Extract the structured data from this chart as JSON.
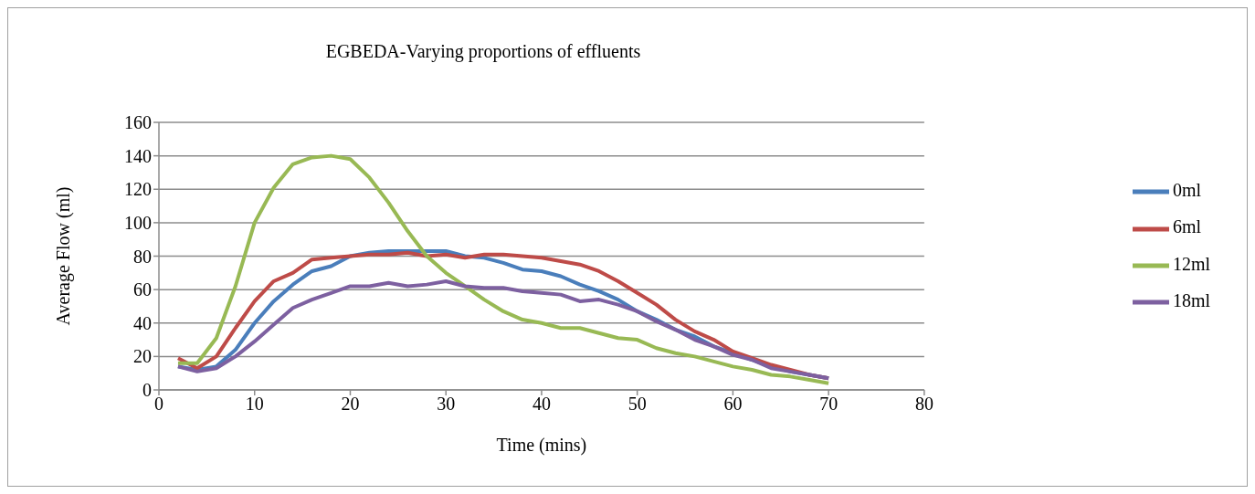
{
  "chart_data": {
    "type": "line",
    "title": "EGBEDA-Varying proportions of effluents",
    "xlabel": "Time (mins)",
    "ylabel": "Average Flow (ml)",
    "x": [
      2,
      4,
      6,
      8,
      10,
      12,
      14,
      16,
      18,
      20,
      22,
      24,
      26,
      28,
      30,
      32,
      34,
      36,
      38,
      40,
      42,
      44,
      46,
      48,
      50,
      52,
      54,
      56,
      58,
      60,
      62,
      64,
      66,
      68,
      70
    ],
    "series": [
      {
        "name": "0ml",
        "color": "#4a7ebb",
        "values": [
          14,
          12,
          14,
          24,
          40,
          53,
          63,
          71,
          74,
          80,
          82,
          83,
          83,
          83,
          83,
          80,
          79,
          76,
          72,
          71,
          68,
          63,
          59,
          54,
          47,
          42,
          36,
          32,
          26,
          22,
          18,
          14,
          11,
          9,
          7
        ]
      },
      {
        "name": "6ml",
        "color": "#be4b48",
        "values": [
          19,
          13,
          20,
          37,
          53,
          65,
          70,
          78,
          79,
          80,
          81,
          81,
          82,
          80,
          81,
          79,
          81,
          81,
          80,
          79,
          77,
          75,
          71,
          65,
          58,
          51,
          42,
          35,
          30,
          23,
          19,
          15,
          12,
          9,
          7
        ]
      },
      {
        "name": "12ml",
        "color": "#98b954",
        "values": [
          16,
          16,
          31,
          62,
          100,
          121,
          135,
          139,
          140,
          138,
          127,
          112,
          95,
          80,
          70,
          62,
          54,
          47,
          42,
          40,
          37,
          37,
          34,
          31,
          30,
          25,
          22,
          20,
          17,
          14,
          12,
          9,
          8,
          6,
          4
        ]
      },
      {
        "name": "18ml",
        "color": "#7d60a0",
        "values": [
          14,
          11,
          13,
          20,
          29,
          39,
          49,
          54,
          58,
          62,
          62,
          64,
          62,
          63,
          65,
          62,
          61,
          61,
          59,
          58,
          57,
          53,
          54,
          51,
          47,
          41,
          36,
          30,
          26,
          21,
          18,
          13,
          11,
          9,
          7
        ]
      }
    ],
    "xlim": [
      0,
      80
    ],
    "xticks": [
      0,
      10,
      20,
      30,
      40,
      50,
      60,
      70,
      80
    ],
    "ylim": [
      0,
      160
    ],
    "yticks": [
      0,
      20,
      40,
      60,
      80,
      100,
      120,
      140,
      160
    ],
    "grid": "y",
    "legend": "right",
    "marker": "none",
    "line_style": "solid"
  }
}
